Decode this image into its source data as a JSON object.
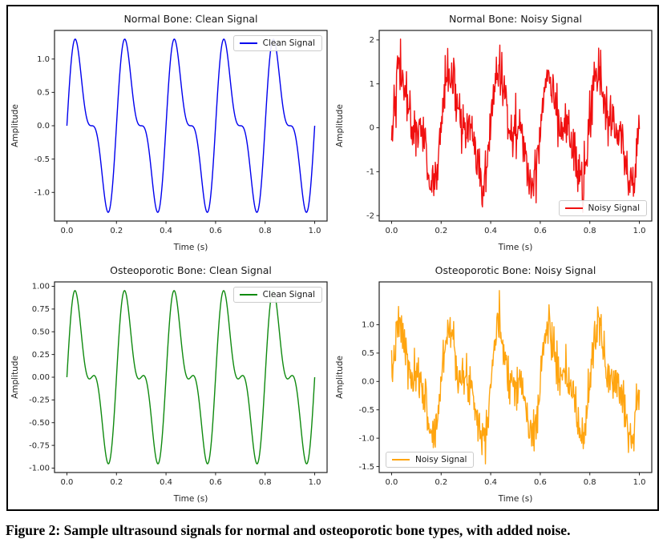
{
  "figure": {
    "caption": "Figure 2: Sample ultrasound signals for normal and osteoporotic bone types, with added noise."
  },
  "chart_data": [
    {
      "type": "line",
      "title": "Normal Bone: Clean Signal",
      "xlabel": "Time (s)",
      "ylabel": "Amplitude",
      "xlim": [
        -0.05,
        1.05
      ],
      "x_range_s": [
        0,
        1
      ],
      "n_samples": 500,
      "grid": false,
      "series": [
        {
          "name": "Clean Signal",
          "color": "#0000ee",
          "f0_hz": 5,
          "harmonics": [
            1.0,
            0.5
          ],
          "peak_amplitude": 1.3,
          "noise_sigma": 0,
          "seed": 11
        }
      ],
      "legend": {
        "label": "Clean Signal",
        "position": "top-right"
      },
      "xticks": {
        "values": [
          0,
          0.2,
          0.4,
          0.6,
          0.8,
          1.0
        ],
        "labels": [
          "0.0",
          "0.2",
          "0.4",
          "0.6",
          "0.8",
          "1.0"
        ]
      },
      "yticks": {
        "values": [
          -1.0,
          -0.5,
          0.0,
          0.5,
          1.0
        ],
        "labels": [
          "-1.0",
          "-0.5",
          "0.0",
          "0.5",
          "1.0"
        ]
      }
    },
    {
      "type": "line",
      "title": "Normal Bone: Noisy Signal",
      "xlabel": "Time (s)",
      "ylabel": "Amplitude",
      "xlim": [
        -0.05,
        1.05
      ],
      "x_range_s": [
        0,
        1
      ],
      "n_samples": 500,
      "grid": false,
      "series": [
        {
          "name": "Noisy Signal",
          "color": "#f01010",
          "f0_hz": 5,
          "harmonics": [
            1.0,
            0.5
          ],
          "peak_amplitude": 2.1,
          "noise_sigma": 0.3,
          "seed": 42
        }
      ],
      "legend": {
        "label": "Noisy Signal",
        "position": "bottom-right"
      },
      "xticks": {
        "values": [
          0,
          0.2,
          0.4,
          0.6,
          0.8,
          1.0
        ],
        "labels": [
          "0.0",
          "0.2",
          "0.4",
          "0.6",
          "0.8",
          "1.0"
        ]
      },
      "yticks": {
        "values": [
          -2,
          -1,
          0,
          1,
          2
        ],
        "labels": [
          "-2",
          "-1",
          "0",
          "1",
          "2"
        ]
      }
    },
    {
      "type": "line",
      "title": "Osteoporotic Bone: Clean Signal",
      "xlabel": "Time (s)",
      "ylabel": "Amplitude",
      "xlim": [
        -0.05,
        1.05
      ],
      "x_range_s": [
        0,
        1
      ],
      "n_samples": 500,
      "grid": false,
      "series": [
        {
          "name": "Clean Signal",
          "color": "#0f8a0f",
          "f0_hz": 5,
          "harmonics": [
            0.7,
            0.4
          ],
          "peak_amplitude": 0.95,
          "noise_sigma": 0,
          "seed": 13
        }
      ],
      "legend": {
        "label": "Clean Signal",
        "position": "top-right"
      },
      "xticks": {
        "values": [
          0,
          0.2,
          0.4,
          0.6,
          0.8,
          1.0
        ],
        "labels": [
          "0.0",
          "0.2",
          "0.4",
          "0.6",
          "0.8",
          "1.0"
        ]
      },
      "yticks": {
        "values": [
          -1.0,
          -0.75,
          -0.5,
          -0.25,
          0.0,
          0.25,
          0.5,
          0.75,
          1.0
        ],
        "labels": [
          "-1.00",
          "-0.75",
          "-0.50",
          "-0.25",
          "0.00",
          "0.25",
          "0.50",
          "0.75",
          "1.00"
        ]
      }
    },
    {
      "type": "line",
      "title": "Osteoporotic Bone: Noisy Signal",
      "xlabel": "Time (s)",
      "ylabel": "Amplitude",
      "xlim": [
        -0.05,
        1.05
      ],
      "x_range_s": [
        0,
        1
      ],
      "n_samples": 500,
      "grid": false,
      "series": [
        {
          "name": "Noisy Signal",
          "color": "#ffa510",
          "f0_hz": 5,
          "harmonics": [
            0.7,
            0.4
          ],
          "peak_amplitude": 1.35,
          "noise_sigma": 0.2,
          "seed": 7
        }
      ],
      "legend": {
        "label": "Noisy Signal",
        "position": "bottom-left"
      },
      "xticks": {
        "values": [
          0,
          0.2,
          0.4,
          0.6,
          0.8,
          1.0
        ],
        "labels": [
          "0.0",
          "0.2",
          "0.4",
          "0.6",
          "0.8",
          "1.0"
        ]
      },
      "yticks": {
        "values": [
          -1.5,
          -1.0,
          -0.5,
          0.0,
          0.5,
          1.0
        ],
        "labels": [
          "-1.5",
          "-1.0",
          "-0.5",
          "0.0",
          "0.5",
          "1.0"
        ]
      }
    }
  ]
}
